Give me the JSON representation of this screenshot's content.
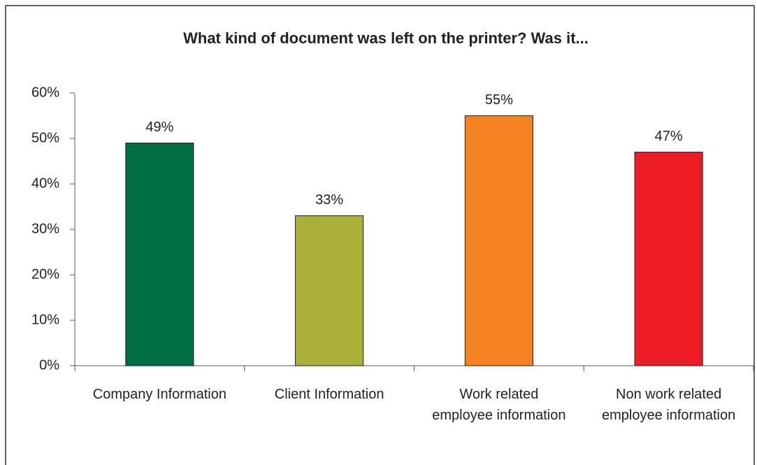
{
  "chart_data": {
    "type": "bar",
    "title": "What kind of document was left on the printer? Was it...",
    "categories": [
      "Company Information",
      "Client Information",
      "Work related employee information",
      "Non work related employee information"
    ],
    "values": [
      49,
      33,
      55,
      47
    ],
    "value_labels": [
      "49%",
      "33%",
      "55%",
      "47%"
    ],
    "colors": [
      "#006f44",
      "#a8b03a",
      "#f58220",
      "#ed1c24"
    ],
    "ylim": [
      0,
      60
    ],
    "yticks": [
      {
        "value": 0,
        "label": "0%"
      },
      {
        "value": 10,
        "label": "10%"
      },
      {
        "value": 20,
        "label": "20%"
      },
      {
        "value": 30,
        "label": "30%"
      },
      {
        "value": 40,
        "label": "40%"
      },
      {
        "value": 50,
        "label": "50%"
      },
      {
        "value": 60,
        "label": "60%"
      }
    ]
  }
}
